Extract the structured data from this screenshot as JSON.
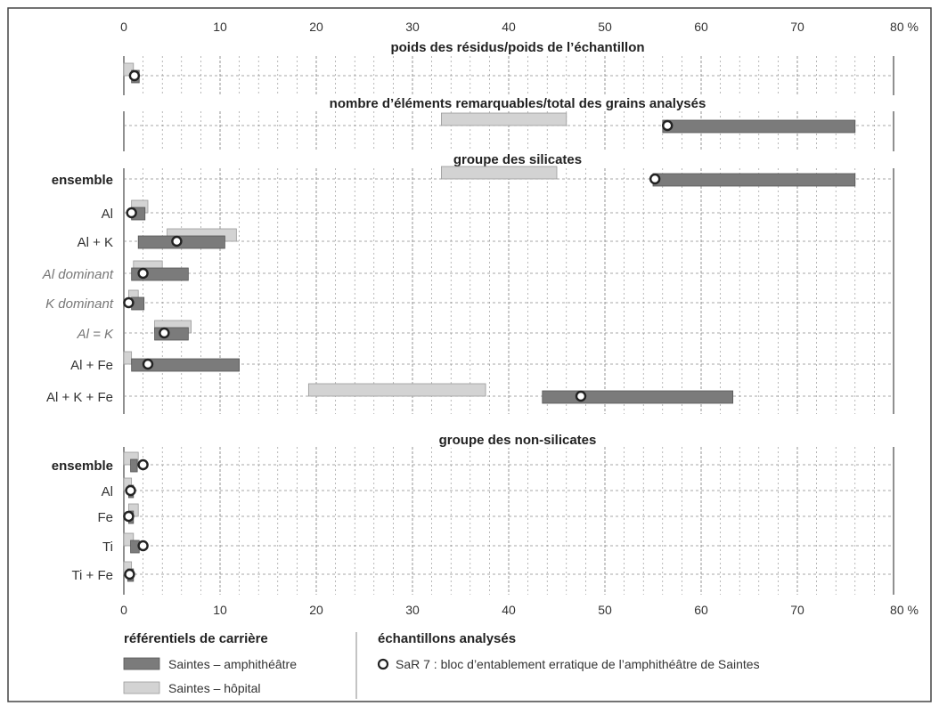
{
  "chart_data": {
    "type": "bar",
    "unit": "%",
    "x_ticks": [
      "0",
      "10",
      "20",
      "30",
      "40",
      "50",
      "60",
      "70",
      "80 %"
    ],
    "xlim": [
      0,
      80
    ],
    "grid": true,
    "panels": [
      {
        "title": "poids des résidus/poids de l’échantillon",
        "rows": [
          {
            "label": "",
            "style": "normal",
            "hopital": [
              0,
              1
            ],
            "amphi": [
              0.8,
              1.6
            ],
            "sample": 1.1
          }
        ]
      },
      {
        "title": "nombre d’éléments remarquables/total des grains analysés",
        "rows": [
          {
            "label": "",
            "style": "normal",
            "hopital": [
              33,
              46
            ],
            "amphi": [
              56,
              76
            ],
            "sample": 56.5
          }
        ]
      },
      {
        "title": "groupe des silicates",
        "rows": [
          {
            "label": "ensemble",
            "style": "bold",
            "hopital": [
              33,
              45
            ],
            "amphi": [
              55,
              76
            ],
            "sample": 55.2
          },
          {
            "label": "Al",
            "style": "normal",
            "hopital": [
              0.8,
              2.5
            ],
            "amphi": [
              0.8,
              2.2
            ],
            "sample": 0.8
          },
          {
            "label": "Al + K",
            "style": "normal",
            "hopital": [
              4.5,
              11.7
            ],
            "amphi": [
              1.5,
              10.5
            ],
            "sample": 5.5
          },
          {
            "label": "Al dominant",
            "style": "italic",
            "hopital": [
              1,
              4
            ],
            "amphi": [
              0.8,
              6.7
            ],
            "sample": 2
          },
          {
            "label": "K dominant",
            "style": "italic",
            "hopital": [
              0.5,
              1.5
            ],
            "amphi": [
              0.8,
              2.1
            ],
            "sample": 0.5
          },
          {
            "label": "Al = K",
            "style": "italic",
            "hopital": [
              3.2,
              7
            ],
            "amphi": [
              3.2,
              6.7
            ],
            "sample": 4.2
          },
          {
            "label": "Al + Fe",
            "style": "normal",
            "hopital": [
              0,
              0.8
            ],
            "amphi": [
              0.8,
              12
            ],
            "sample": 2.5
          },
          {
            "label": "Al + K + Fe",
            "style": "normal",
            "hopital": [
              19.2,
              37.6
            ],
            "amphi": [
              43.5,
              63.3
            ],
            "sample": 47.5
          }
        ]
      },
      {
        "title": "groupe des non-silicates",
        "rows": [
          {
            "label": "ensemble",
            "style": "bold",
            "hopital": [
              0,
              1.5
            ],
            "amphi": [
              0.7,
              1.4
            ],
            "sample": 2
          },
          {
            "label": "Al",
            "style": "normal",
            "hopital": [
              0,
              0.8
            ],
            "amphi": [
              0.5,
              1
            ],
            "sample": 0.7
          },
          {
            "label": "Fe",
            "style": "normal",
            "hopital": [
              0.5,
              1.5
            ],
            "amphi": [
              0.5,
              1
            ],
            "sample": 0.5
          },
          {
            "label": "Ti",
            "style": "normal",
            "hopital": [
              0,
              1
            ],
            "amphi": [
              0.7,
              1.6
            ],
            "sample": 2
          },
          {
            "label": "Ti + Fe",
            "style": "normal",
            "hopital": [
              0,
              0.8
            ],
            "amphi": [
              0.4,
              1
            ],
            "sample": 0.6
          }
        ]
      }
    ]
  },
  "legend": {
    "left_title": "référentiels de carrière",
    "amphi_label": "Saintes – amphithéâtre",
    "hopital_label": "Saintes – hôpital",
    "right_title": "échantillons analysés",
    "sample_label": "SaR 7 : bloc d’entablement erratique de l’amphithéâtre de Saintes"
  },
  "colors": {
    "amphi_fill": "#7b7b7b",
    "hopital_fill": "#d3d3d3",
    "grid": "#8a8a8a",
    "frame": "#444444"
  }
}
